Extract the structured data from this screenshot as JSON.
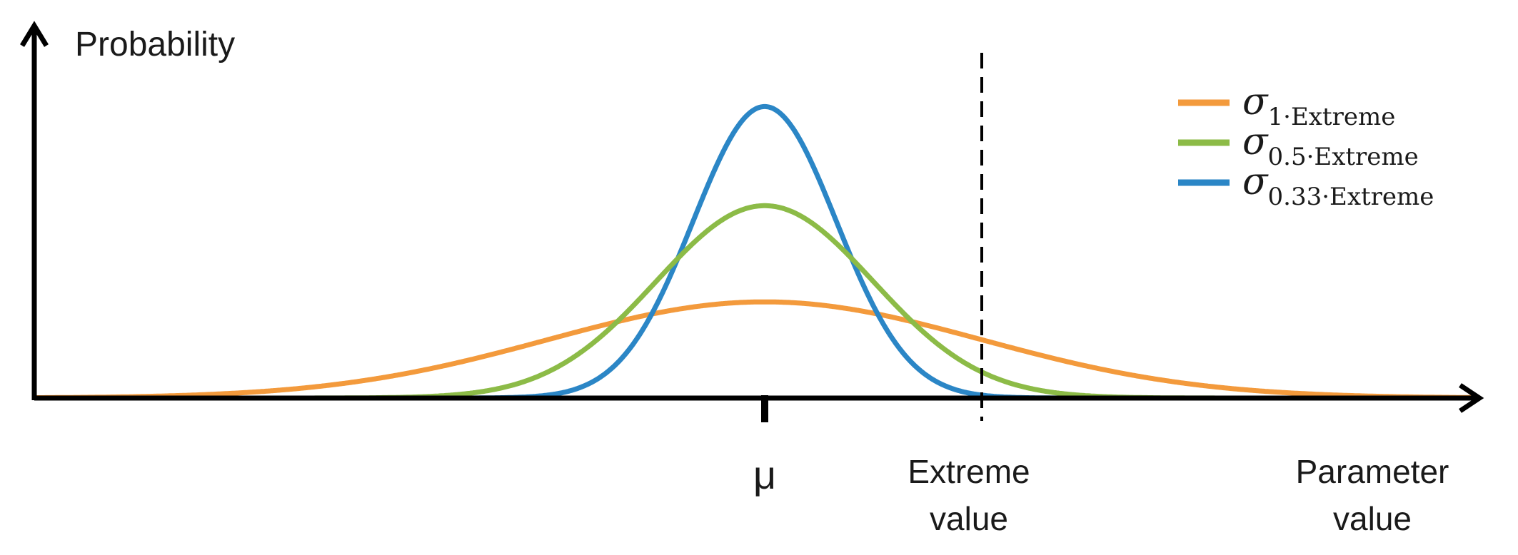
{
  "chart_data": {
    "type": "line",
    "ylabel": "Probability",
    "xlabel_lines": [
      "Parameter",
      "value"
    ],
    "mu_label": "μ",
    "extreme_label_lines": [
      "Extreme",
      "value"
    ],
    "mu": 0,
    "extreme": 1,
    "xlim": [
      -3.5,
      3.2
    ],
    "grid": false,
    "legend_position": "top-right",
    "series": [
      {
        "sigma_symbol": "σ",
        "subscript": "1·Extreme",
        "sigma": 1.0,
        "color": "#F39A3C"
      },
      {
        "sigma_symbol": "σ",
        "subscript": "0.5·Extreme",
        "sigma": 0.5,
        "color": "#8CBB47"
      },
      {
        "sigma_symbol": "σ",
        "subscript": "0.33·Extreme",
        "sigma": 0.33,
        "color": "#2B86C6"
      }
    ]
  }
}
